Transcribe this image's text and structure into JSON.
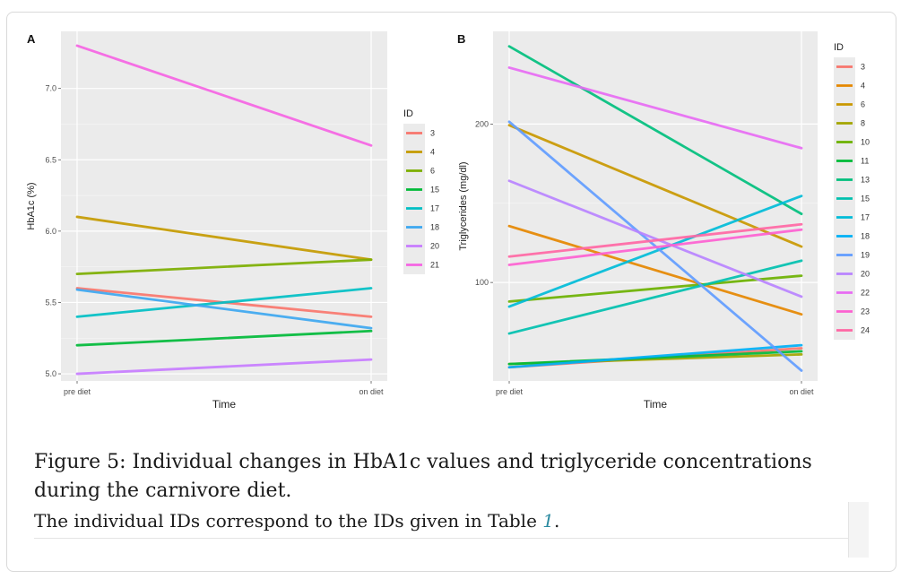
{
  "chart_data": [
    {
      "type": "line",
      "panel_label": "A",
      "xlabel": "Time",
      "ylabel": "HbA1c (%)",
      "x": [
        "pre diet",
        "on diet"
      ],
      "ylim": [
        4.95,
        7.4
      ],
      "yticks": [
        5.0,
        5.5,
        6.0,
        6.5,
        7.0
      ],
      "ytick_labels": [
        "5.0",
        "5.5",
        "6.0",
        "6.5",
        "7.0"
      ],
      "grid": true,
      "legend_title": "ID",
      "legend_position": "right",
      "series": [
        {
          "name": "3",
          "color": "#F8766D",
          "values": [
            5.6,
            5.4
          ]
        },
        {
          "name": "4",
          "color": "#C49A00",
          "values": [
            6.1,
            5.8
          ]
        },
        {
          "name": "6",
          "color": "#7CAE00",
          "values": [
            5.7,
            5.8
          ]
        },
        {
          "name": "15",
          "color": "#00BA38",
          "values": [
            5.2,
            5.3
          ]
        },
        {
          "name": "17",
          "color": "#00BFC4",
          "values": [
            5.4,
            5.6
          ]
        },
        {
          "name": "18",
          "color": "#3DA7F0",
          "values": [
            5.59,
            5.32
          ]
        },
        {
          "name": "20",
          "color": "#C77CFF",
          "values": [
            5.0,
            5.1
          ]
        },
        {
          "name": "21",
          "color": "#F564E3",
          "values": [
            7.3,
            6.6
          ]
        }
      ]
    },
    {
      "type": "line",
      "panel_label": "B",
      "xlabel": "Time",
      "ylabel": "Triglycerides (mg/dl)",
      "x": [
        "pre diet",
        "on diet"
      ],
      "ylim": [
        65,
        300
      ],
      "yscale": "log",
      "yticks": [
        100,
        200
      ],
      "ytick_labels": [
        "100",
        "200"
      ],
      "grid": true,
      "legend_title": "ID",
      "legend_position": "right",
      "series": [
        {
          "name": "3",
          "color": "#F8766D",
          "values": [
            69,
            75
          ]
        },
        {
          "name": "4",
          "color": "#E58700",
          "values": [
            128,
            87
          ]
        },
        {
          "name": "6",
          "color": "#C99800",
          "values": [
            199,
            117
          ]
        },
        {
          "name": "8",
          "color": "#A3A500",
          "values": [
            70,
            73
          ]
        },
        {
          "name": "10",
          "color": "#6BB100",
          "values": [
            92,
            103
          ]
        },
        {
          "name": "11",
          "color": "#00BA38",
          "values": [
            70,
            74
          ]
        },
        {
          "name": "13",
          "color": "#00BF7D",
          "values": [
            281,
            135
          ]
        },
        {
          "name": "15",
          "color": "#00C0AF",
          "values": [
            80,
            110
          ]
        },
        {
          "name": "17",
          "color": "#00BCD8",
          "values": [
            90,
            146
          ]
        },
        {
          "name": "18",
          "color": "#00B0F6",
          "values": [
            69,
            76
          ]
        },
        {
          "name": "19",
          "color": "#619CFF",
          "values": [
            202,
            68
          ]
        },
        {
          "name": "20",
          "color": "#B983FF",
          "values": [
            156,
            94
          ]
        },
        {
          "name": "22",
          "color": "#E76BF3",
          "values": [
            256,
            180
          ]
        },
        {
          "name": "23",
          "color": "#FD61D1",
          "values": [
            108,
            126
          ]
        },
        {
          "name": "24",
          "color": "#FF67A4",
          "values": [
            112,
            129
          ]
        }
      ]
    }
  ],
  "caption": {
    "title": "Figure 5: Individual changes in HbA1c values and triglyceride concentrations during the carnivore diet.",
    "text_before": "The individual IDs correspond to the IDs given in Table ",
    "table_ref": "1",
    "text_after": "."
  }
}
